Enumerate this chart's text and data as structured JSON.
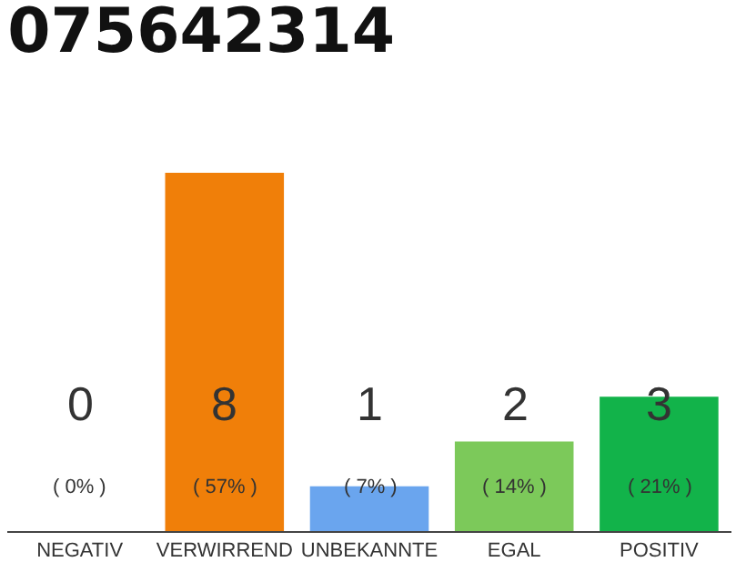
{
  "chart_data": {
    "type": "bar",
    "title": "075642314",
    "categories": [
      "NEGATIV",
      "VERWIRREND",
      "UNBEKANNTE",
      "EGAL",
      "POSITIV"
    ],
    "values": [
      0,
      8,
      1,
      2,
      3
    ],
    "colors": [
      "#9e9e9e",
      "#f07f09",
      "#6aa5ee",
      "#7cc95a",
      "#12b34a"
    ],
    "value_labels": [
      "0\n( 0% )",
      "8\n( 57% )",
      "1\n( 7% )",
      "2\n( 14% )",
      "3\n( 21% )"
    ],
    "ylim": [
      0,
      8
    ],
    "grid": false,
    "legend": false
  }
}
